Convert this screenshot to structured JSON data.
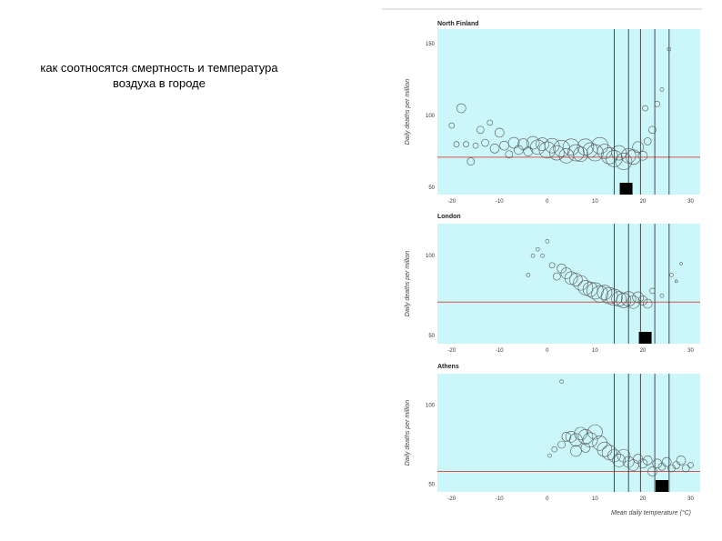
{
  "slide": {
    "title_lines": [
      "как соотносятся смертность и температура",
      "воздуха в городе"
    ]
  },
  "colors": {
    "panel_bg": "#ccf7fa",
    "reference_line": "#d9544d",
    "circle_stroke": "#555555",
    "vertical_lines": "#222222",
    "marker": "#000000"
  },
  "chart_data": [
    {
      "type": "scatter",
      "title": "North Finland",
      "xlabel": "",
      "ylabel": "Daily deaths per million",
      "xlim": [
        -23,
        32
      ],
      "ylim": [
        45,
        160
      ],
      "xticks": [
        -20,
        -10,
        0,
        10,
        20,
        30
      ],
      "yticks": [
        50,
        100,
        150
      ],
      "reference_y": 71,
      "vertical_lines_x": [
        14,
        17,
        19.5,
        22.5,
        25.5
      ],
      "marker_x": 16.5,
      "points": [
        [
          -20,
          93,
          3
        ],
        [
          -19,
          80,
          3
        ],
        [
          -18,
          105,
          5
        ],
        [
          -17,
          80,
          3
        ],
        [
          -16,
          68,
          4
        ],
        [
          -15,
          79,
          3
        ],
        [
          -14,
          90,
          4
        ],
        [
          -13,
          81,
          4
        ],
        [
          -12,
          95,
          3
        ],
        [
          -11,
          77,
          5
        ],
        [
          -10,
          88,
          5
        ],
        [
          -9,
          79,
          5
        ],
        [
          -8,
          73,
          4
        ],
        [
          -7,
          81,
          6
        ],
        [
          -6,
          76,
          5
        ],
        [
          -5,
          80,
          6
        ],
        [
          -4,
          75,
          5
        ],
        [
          -3,
          81,
          7
        ],
        [
          -2,
          78,
          8
        ],
        [
          -1,
          80,
          7
        ],
        [
          0,
          76,
          9
        ],
        [
          1,
          79,
          8
        ],
        [
          2,
          74,
          8
        ],
        [
          3,
          77,
          9
        ],
        [
          4,
          72,
          8
        ],
        [
          5,
          78,
          9
        ],
        [
          6,
          74,
          9
        ],
        [
          7,
          73,
          8
        ],
        [
          8,
          78,
          9
        ],
        [
          9,
          76,
          8
        ],
        [
          10,
          74,
          9
        ],
        [
          11,
          79,
          9
        ],
        [
          12,
          75,
          8
        ],
        [
          13,
          72,
          9
        ],
        [
          14,
          70,
          9
        ],
        [
          15,
          74,
          8
        ],
        [
          16,
          68,
          9
        ],
        [
          17,
          72,
          8
        ],
        [
          18,
          71,
          8
        ],
        [
          19,
          78,
          6
        ],
        [
          20,
          72,
          5
        ],
        [
          21,
          82,
          4
        ],
        [
          22,
          90,
          4
        ],
        [
          20.5,
          105,
          3
        ],
        [
          23,
          108,
          3
        ],
        [
          24,
          118,
          2
        ],
        [
          25.5,
          146,
          2
        ]
      ]
    },
    {
      "type": "scatter",
      "title": "London",
      "xlabel": "",
      "ylabel": "Daily deaths per million",
      "xlim": [
        -23,
        32
      ],
      "ylim": [
        45,
        120
      ],
      "xticks": [
        -20,
        -10,
        0,
        10,
        20,
        30
      ],
      "yticks": [
        50,
        100
      ],
      "reference_y": 71,
      "vertical_lines_x": [
        14,
        17,
        19.5,
        22.5,
        25.5
      ],
      "marker_x": 20.5,
      "points": [
        [
          -3,
          100,
          2
        ],
        [
          -2,
          104,
          2
        ],
        [
          -1,
          100,
          2
        ],
        [
          0,
          109,
          2
        ],
        [
          -4,
          88,
          2
        ],
        [
          1,
          94,
          3
        ],
        [
          2,
          87,
          4
        ],
        [
          3,
          92,
          5
        ],
        [
          4,
          89,
          6
        ],
        [
          5,
          86,
          7
        ],
        [
          6,
          85,
          7
        ],
        [
          7,
          83,
          8
        ],
        [
          8,
          80,
          8
        ],
        [
          9,
          79,
          8
        ],
        [
          10,
          78,
          9
        ],
        [
          11,
          76,
          9
        ],
        [
          12,
          77,
          8
        ],
        [
          13,
          75,
          9
        ],
        [
          14,
          74,
          9
        ],
        [
          15,
          73,
          8
        ],
        [
          16,
          72,
          8
        ],
        [
          17,
          73,
          8
        ],
        [
          18,
          71,
          7
        ],
        [
          19,
          74,
          6
        ],
        [
          20,
          72,
          5
        ],
        [
          21,
          70,
          5
        ],
        [
          22,
          78,
          3
        ],
        [
          24,
          75,
          2
        ],
        [
          26,
          88,
          2
        ],
        [
          27,
          84,
          1.5
        ],
        [
          28,
          95,
          1.5
        ]
      ]
    },
    {
      "type": "scatter",
      "title": "Athens",
      "xlabel": "Mean daily temperature (°C)",
      "ylabel": "Daily deaths per million",
      "xlim": [
        -23,
        32
      ],
      "ylim": [
        45,
        120
      ],
      "xticks": [
        -20,
        -10,
        0,
        10,
        20,
        30
      ],
      "yticks": [
        50,
        100
      ],
      "reference_y": 58,
      "vertical_lines_x": [
        14,
        17,
        19.5,
        22.5,
        25.5
      ],
      "marker_x": 24,
      "points": [
        [
          3,
          115,
          2
        ],
        [
          0.5,
          68,
          2
        ],
        [
          1.5,
          72,
          3
        ],
        [
          3,
          75,
          4
        ],
        [
          4,
          80,
          5
        ],
        [
          5,
          80,
          6
        ],
        [
          6,
          78,
          7
        ],
        [
          7,
          82,
          7
        ],
        [
          8,
          80,
          8
        ],
        [
          9,
          78,
          8
        ],
        [
          10,
          83,
          8
        ],
        [
          11,
          76,
          8
        ],
        [
          12,
          72,
          8
        ],
        [
          13,
          70,
          8
        ],
        [
          14,
          68,
          7
        ],
        [
          15,
          65,
          7
        ],
        [
          16,
          68,
          7
        ],
        [
          17,
          64,
          6
        ],
        [
          18,
          62,
          6
        ],
        [
          19,
          66,
          5
        ],
        [
          20,
          63,
          5
        ],
        [
          21,
          65,
          5
        ],
        [
          22,
          58,
          5
        ],
        [
          23,
          63,
          5
        ],
        [
          24,
          61,
          4
        ],
        [
          25,
          64,
          5
        ],
        [
          26,
          60,
          4
        ],
        [
          27,
          62,
          4
        ],
        [
          28,
          65,
          5
        ],
        [
          29,
          60,
          4
        ],
        [
          30,
          62,
          3
        ],
        [
          6,
          71,
          6
        ],
        [
          8,
          73,
          5
        ]
      ]
    }
  ]
}
